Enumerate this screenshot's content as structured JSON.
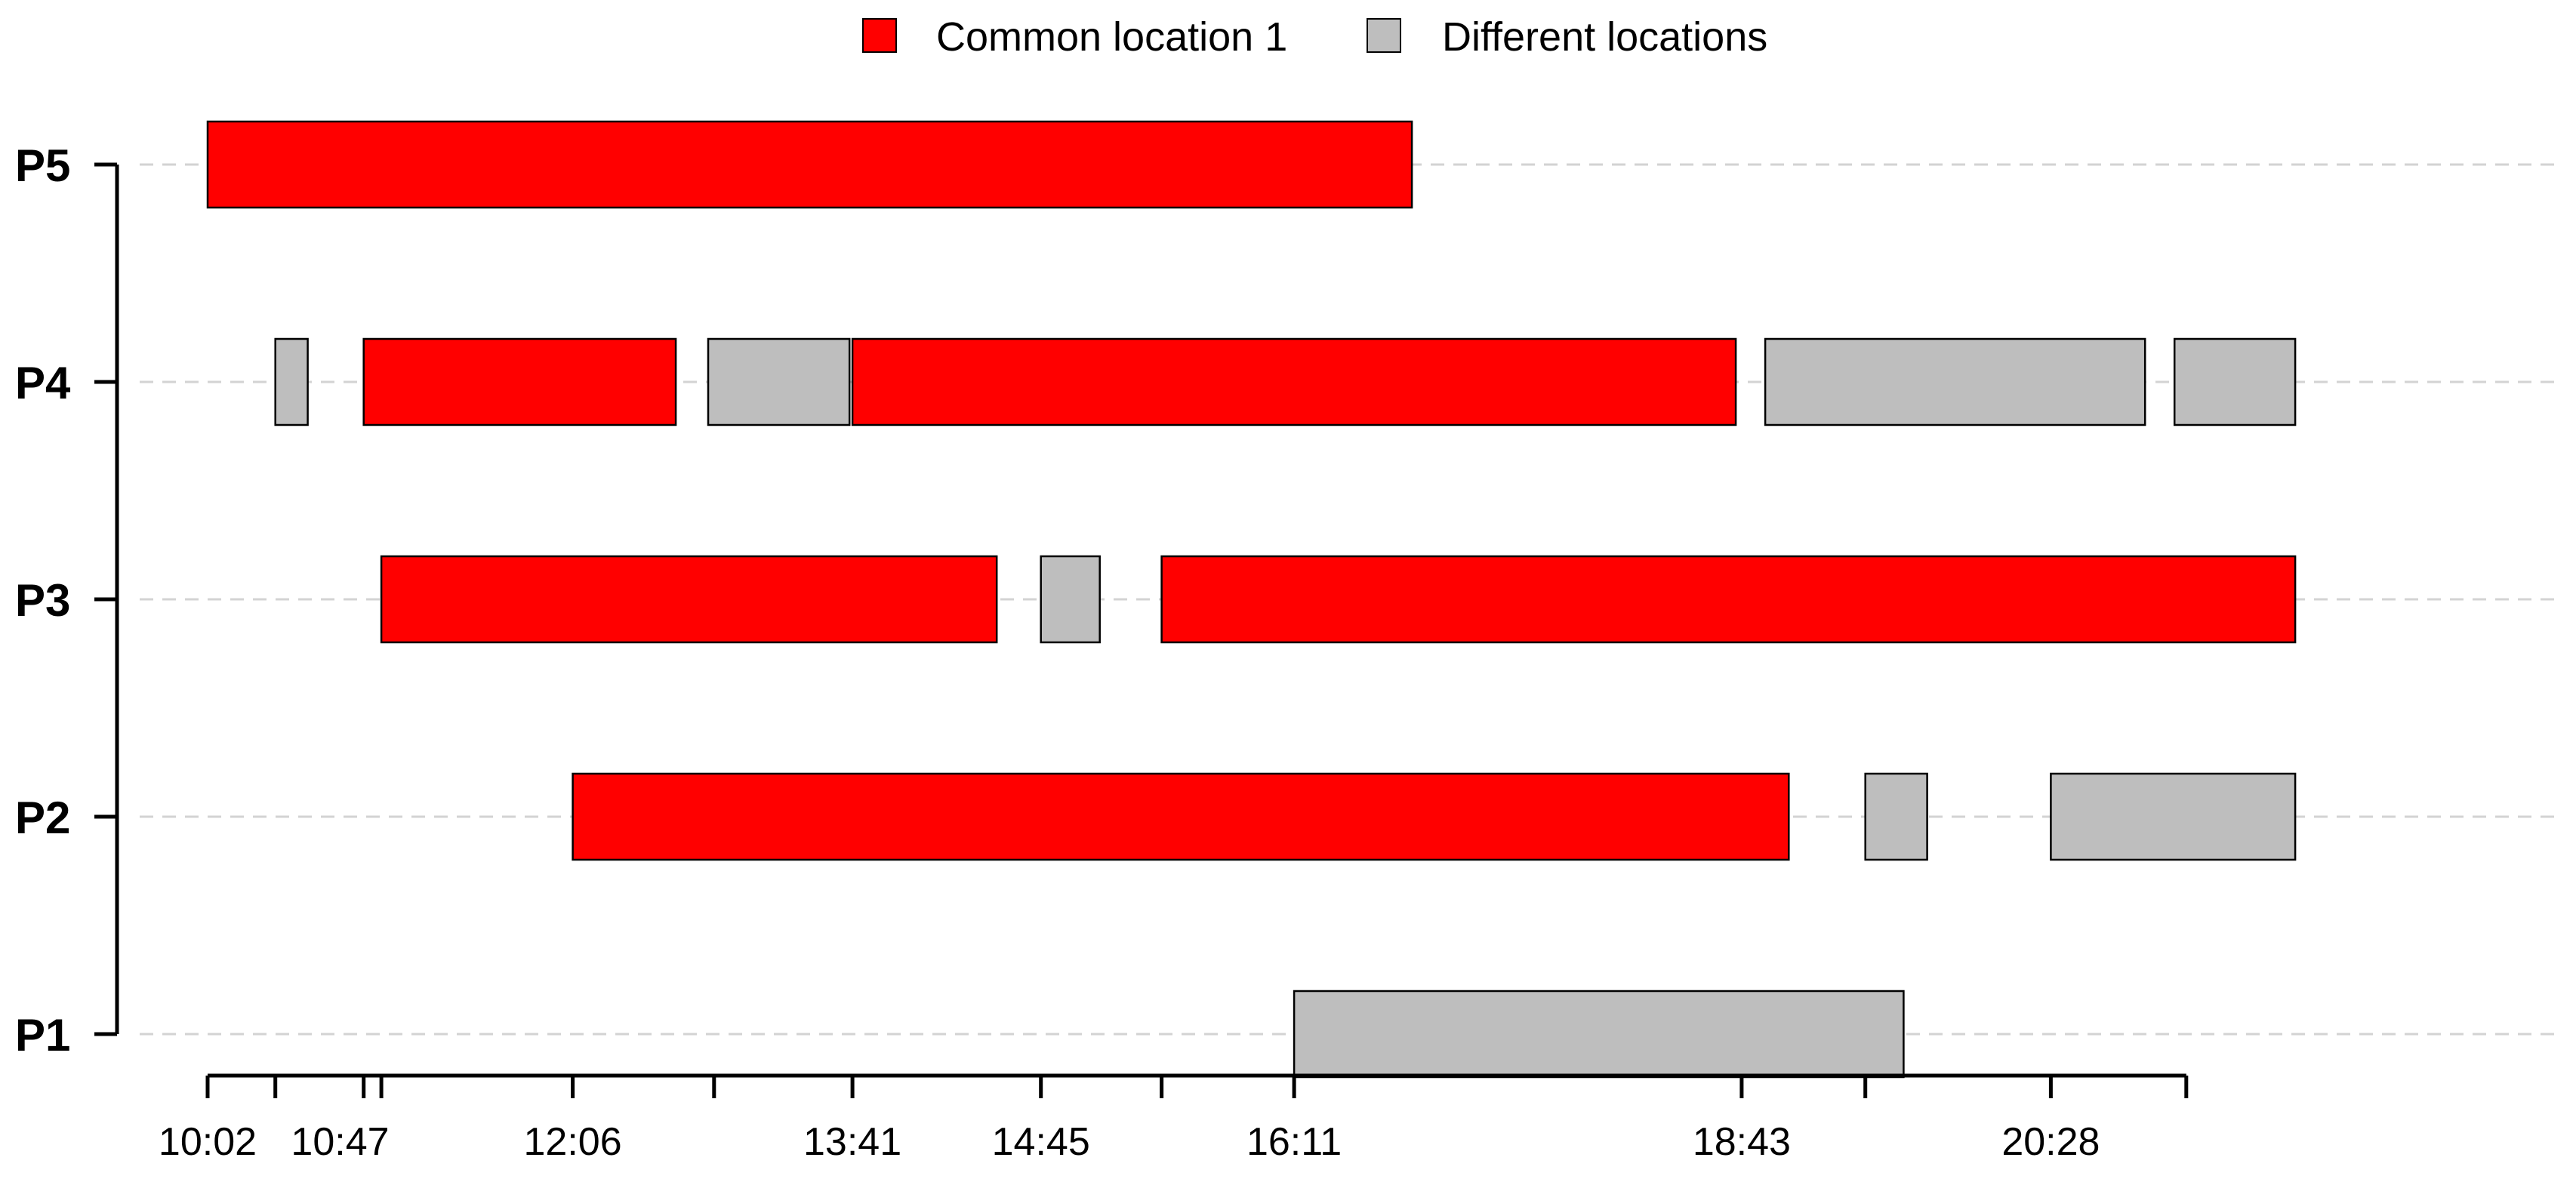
{
  "chart_data": {
    "type": "timeline",
    "colors": {
      "common": "#ff0000",
      "different": "#bebebe",
      "grid": "#d3d3d3"
    },
    "legend": {
      "placement": "top-center",
      "entries": [
        {
          "key": "common",
          "label": "Common location 1"
        },
        {
          "key": "different",
          "label": "Different locations"
        }
      ]
    },
    "rows": [
      "P5",
      "P4",
      "P3",
      "P2",
      "P1"
    ],
    "xlim": [
      "10:02",
      "21:51"
    ],
    "tick_marks": [
      "10:02",
      "10:25",
      "10:55",
      "11:01",
      "12:06",
      "12:54",
      "13:41",
      "14:45",
      "15:26",
      "16:11",
      "18:43",
      "19:25",
      "20:28",
      "21:14"
    ],
    "tick_labels": [
      "10:02",
      "10:47",
      "12:06",
      "13:41",
      "14:45",
      "16:11",
      "18:43",
      "20:28"
    ],
    "segments": [
      {
        "row": "P5",
        "start": "10:02",
        "end": "16:51",
        "loc": "common"
      },
      {
        "row": "P4",
        "start": "10:25",
        "end": "10:36",
        "loc": "different"
      },
      {
        "row": "P4",
        "start": "10:55",
        "end": "12:41",
        "loc": "common"
      },
      {
        "row": "P4",
        "start": "12:52",
        "end": "13:40",
        "loc": "different"
      },
      {
        "row": "P4",
        "start": "13:41",
        "end": "18:41",
        "loc": "common"
      },
      {
        "row": "P4",
        "start": "18:51",
        "end": "21:00",
        "loc": "different"
      },
      {
        "row": "P4",
        "start": "21:10",
        "end": "21:51",
        "loc": "different"
      },
      {
        "row": "P3",
        "start": "11:01",
        "end": "14:30",
        "loc": "common"
      },
      {
        "row": "P3",
        "start": "14:45",
        "end": "15:05",
        "loc": "different"
      },
      {
        "row": "P3",
        "start": "15:26",
        "end": "21:51",
        "loc": "common"
      },
      {
        "row": "P2",
        "start": "12:06",
        "end": "18:59",
        "loc": "common"
      },
      {
        "row": "P2",
        "start": "19:25",
        "end": "19:46",
        "loc": "different"
      },
      {
        "row": "P2",
        "start": "20:28",
        "end": "21:51",
        "loc": "different"
      },
      {
        "row": "P1",
        "start": "16:11",
        "end": "19:38",
        "loc": "different"
      }
    ]
  }
}
